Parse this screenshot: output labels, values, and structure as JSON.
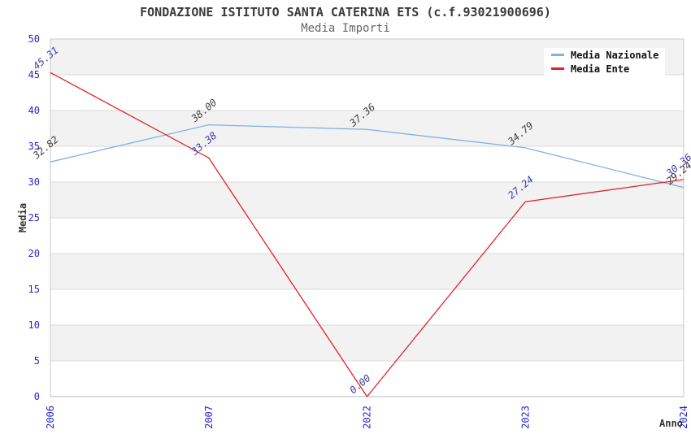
{
  "title": "FONDAZIONE ISTITUTO SANTA CATERINA ETS (c.f.93021900696)",
  "subtitle": "Media Importi",
  "axes": {
    "x_title": "Anno",
    "y_title": "Media"
  },
  "legend": {
    "items": [
      {
        "label": "Media Nazionale",
        "color": "#7EB2E4"
      },
      {
        "label": "Media Ente",
        "color": "#E32227"
      }
    ]
  },
  "colors": {
    "band": "#F2F2F2",
    "grid": "#DBDBDB",
    "plot_border": "#C9C9C9",
    "axis_line": "#B8B8B8",
    "tick_label": "#2525CE",
    "title": "#3A3A3A",
    "subtitle": "#666666"
  },
  "chart_data": {
    "type": "line",
    "categories": [
      "2006",
      "2007",
      "2022",
      "2023",
      "2024"
    ],
    "series": [
      {
        "name": "Media Nazionale",
        "color": "#7EB2E4",
        "label_color": "#3C3C3C",
        "values": [
          32.82,
          38.0,
          37.36,
          34.79,
          29.24
        ]
      },
      {
        "name": "Media Ente",
        "color": "#E32227",
        "label_color": "#3A3AAE",
        "values": [
          45.31,
          33.38,
          0.0,
          27.24,
          30.36
        ]
      }
    ],
    "xlabel": "Anno",
    "ylabel": "Media",
    "ylim": [
      0,
      50
    ],
    "ytick_step": 5,
    "grid": true,
    "bands_alternating": true,
    "legend_position": "top-right",
    "value_labels": true,
    "value_label_rotation_deg": -40,
    "x_tick_rotation_deg": -90
  }
}
